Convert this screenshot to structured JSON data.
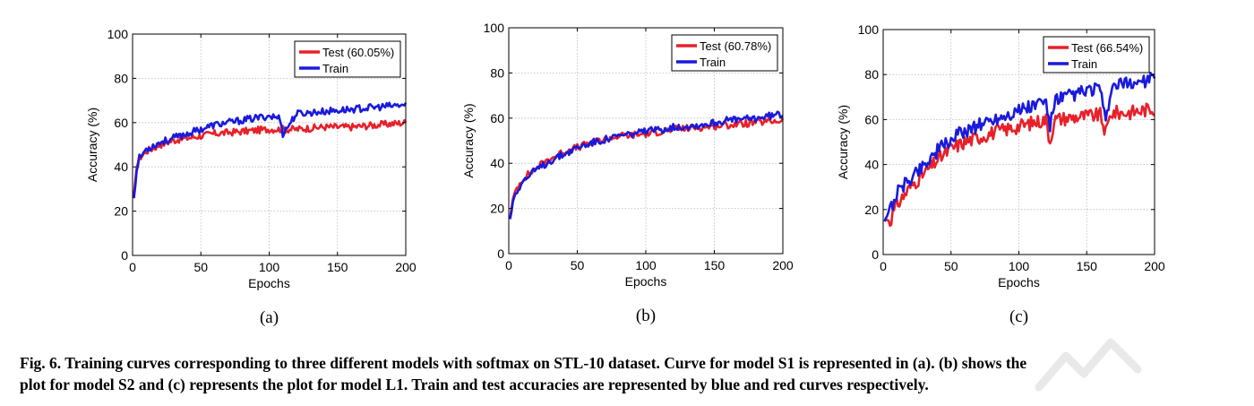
{
  "figure": {
    "caption_line1": "Fig. 6. Training curves corresponding to three different models with softmax on STL-10 dataset. Curve for model S1 is represented in (a). (b) shows the",
    "caption_line2": "plot for model S2 and (c) represents the plot for model L1. Train and test accuracies are represented by blue and red curves respectively.",
    "colors": {
      "test": "#e8202a",
      "train": "#1a1adc",
      "grid": "#b8b8b8",
      "watermark": "#e9e9e9"
    }
  },
  "chart_data": [
    {
      "type": "line",
      "panel_label": "(a)",
      "xlabel": "Epochs",
      "ylabel": "Accuracy (%)",
      "xlim": [
        0,
        200
      ],
      "ylim": [
        0,
        100
      ],
      "xticks": [
        0,
        50,
        100,
        150,
        200
      ],
      "yticks": [
        0,
        20,
        40,
        60,
        80,
        100
      ],
      "grid": true,
      "legend_position": "top-right",
      "series": [
        {
          "name": "Test (60.05%)",
          "color": "#e8202a",
          "x": [
            1,
            3,
            5,
            10,
            20,
            30,
            40,
            50,
            60,
            80,
            100,
            120,
            140,
            160,
            180,
            200
          ],
          "y": [
            27,
            40,
            44,
            47,
            50,
            52,
            53,
            54,
            55,
            56,
            57,
            57,
            58,
            58,
            59,
            60
          ]
        },
        {
          "name": "Train",
          "color": "#1a1adc",
          "x": [
            1,
            3,
            5,
            10,
            20,
            30,
            40,
            50,
            60,
            80,
            100,
            108,
            110,
            120,
            140,
            160,
            180,
            200
          ],
          "y": [
            26,
            38,
            44,
            48,
            51,
            53,
            55,
            57,
            59,
            61,
            63,
            62,
            55,
            64,
            65,
            66,
            67,
            68
          ]
        }
      ]
    },
    {
      "type": "line",
      "panel_label": "(b)",
      "xlabel": "Epochs",
      "ylabel": "Accuracy (%)",
      "xlim": [
        0,
        200
      ],
      "ylim": [
        0,
        100
      ],
      "xticks": [
        0,
        50,
        100,
        150,
        200
      ],
      "yticks": [
        0,
        20,
        40,
        60,
        80,
        100
      ],
      "grid": true,
      "legend_position": "top-right",
      "series": [
        {
          "name": "Test (60.78%)",
          "color": "#e8202a",
          "x": [
            1,
            3,
            5,
            10,
            20,
            30,
            40,
            50,
            60,
            80,
            100,
            120,
            140,
            160,
            180,
            200
          ],
          "y": [
            16,
            24,
            28,
            33,
            38,
            42,
            45,
            47,
            49,
            52,
            53,
            55,
            56,
            57,
            58,
            59
          ]
        },
        {
          "name": "Train",
          "color": "#1a1adc",
          "x": [
            1,
            3,
            5,
            10,
            20,
            30,
            40,
            50,
            60,
            80,
            100,
            120,
            140,
            160,
            180,
            200
          ],
          "y": [
            15,
            23,
            27,
            32,
            37,
            41,
            44,
            47,
            49,
            52,
            54,
            56,
            57,
            59,
            60,
            62
          ]
        }
      ]
    },
    {
      "type": "line",
      "panel_label": "(c)",
      "xlabel": "Epochs",
      "ylabel": "Accuracy (%)",
      "xlim": [
        0,
        200
      ],
      "ylim": [
        0,
        100
      ],
      "xticks": [
        0,
        50,
        100,
        150,
        200
      ],
      "yticks": [
        0,
        20,
        40,
        60,
        80,
        100
      ],
      "grid": true,
      "legend_position": "top-right",
      "series": [
        {
          "name": "Test (66.54%)",
          "color": "#e8202a",
          "x": [
            1,
            5,
            10,
            20,
            30,
            40,
            50,
            60,
            80,
            100,
            120,
            123,
            126,
            140,
            160,
            164,
            168,
            180,
            200
          ],
          "y": [
            16,
            15,
            22,
            30,
            36,
            42,
            47,
            50,
            54,
            57,
            60,
            50,
            60,
            61,
            62,
            54,
            63,
            63,
            65
          ]
        },
        {
          "name": "Train",
          "color": "#1a1adc",
          "x": [
            1,
            5,
            10,
            20,
            30,
            40,
            50,
            60,
            80,
            100,
            120,
            123,
            126,
            140,
            160,
            164,
            168,
            180,
            200
          ],
          "y": [
            15,
            20,
            27,
            34,
            40,
            46,
            51,
            55,
            60,
            64,
            68,
            56,
            68,
            71,
            74,
            57,
            74,
            76,
            78
          ]
        }
      ]
    }
  ]
}
